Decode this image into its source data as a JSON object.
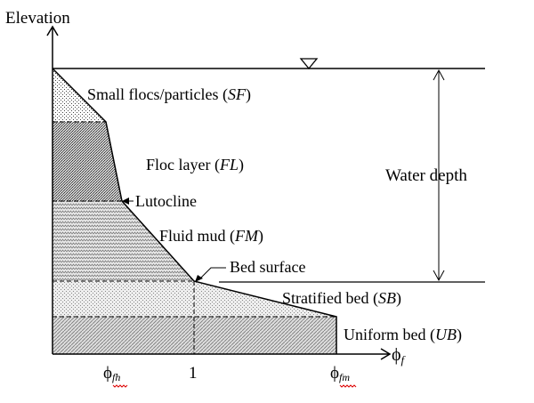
{
  "diagram": {
    "axis_y_label": "Elevation",
    "axis_x_symbol": "ϕ",
    "axis_x_subscript": "f",
    "water_depth_label": "Water depth",
    "layers": [
      {
        "name": "Small flocs/particles",
        "abbr": "SF"
      },
      {
        "name": "Floc layer",
        "abbr": "FL"
      },
      {
        "name": "Fluid mud",
        "abbr": "FM"
      },
      {
        "name": "Stratified bed",
        "abbr": "SB"
      },
      {
        "name": "Uniform bed",
        "abbr": "UB"
      }
    ],
    "lutocline_label": "Lutocline",
    "bed_surface_label": "Bed surface",
    "ticks": {
      "phi_fh_symbol": "ϕ",
      "phi_fh_sub": "fh",
      "one": "1",
      "phi_fm_symbol": "ϕ",
      "phi_fm_sub": "fm"
    }
  }
}
